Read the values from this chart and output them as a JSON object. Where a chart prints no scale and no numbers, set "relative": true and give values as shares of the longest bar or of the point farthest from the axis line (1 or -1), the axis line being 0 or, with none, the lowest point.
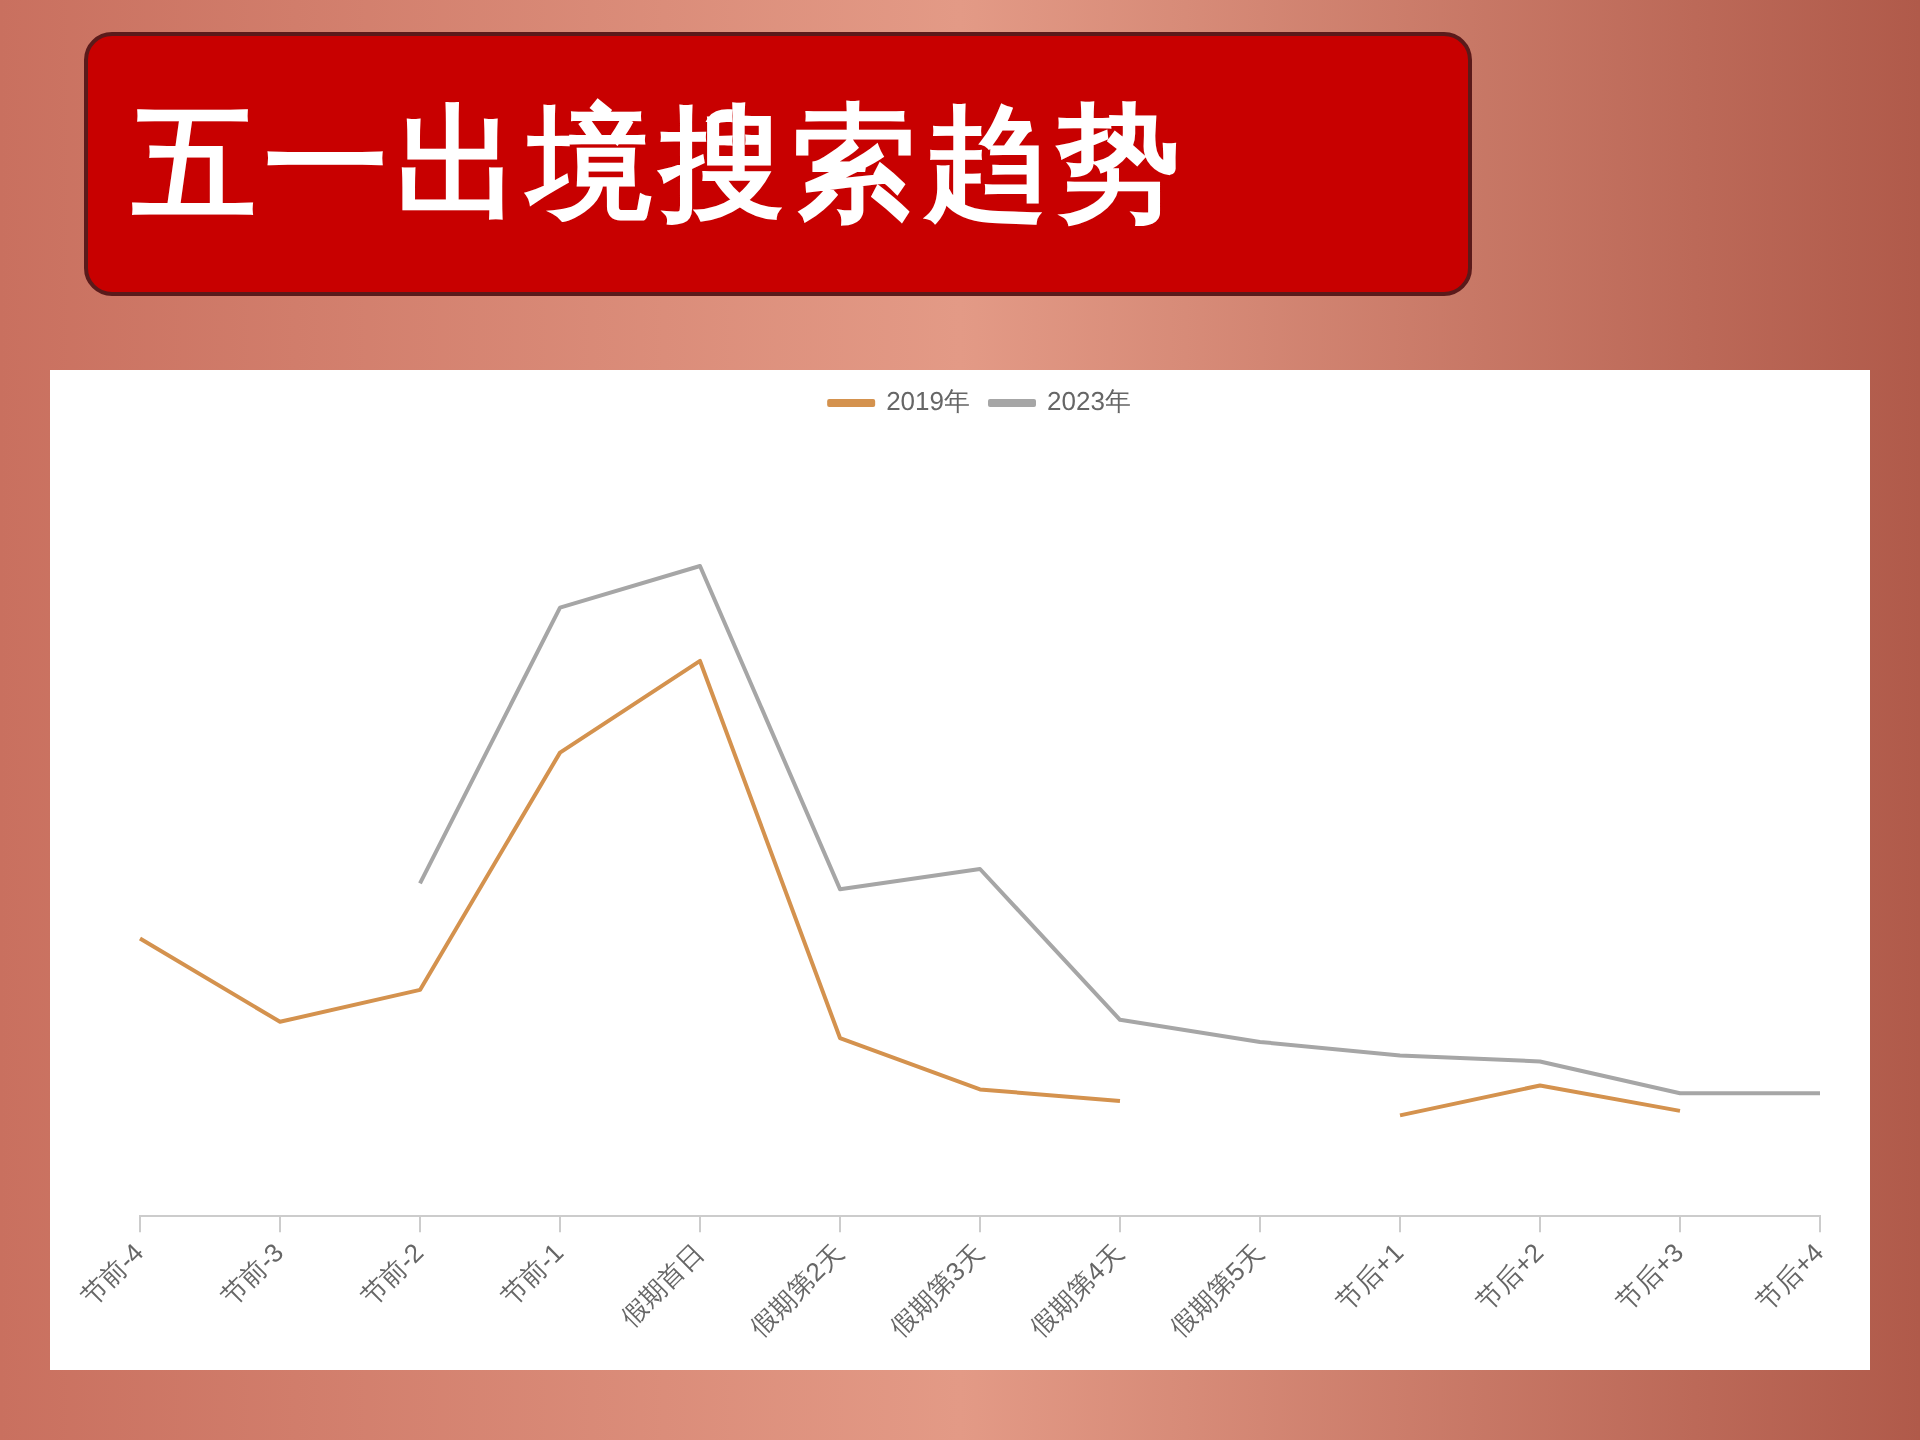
{
  "chart_data": {
    "type": "line",
    "title": "五一出境搜索趋势",
    "relative": true,
    "legend": "top",
    "categories": [
      "节前-4",
      "节前-3",
      "节前-2",
      "节前-1",
      "假期首日",
      "假期第2天",
      "假期第3天",
      "假期第4天",
      "假期第5天",
      "节后+1",
      "节后+2",
      "节后+3",
      "节后+4"
    ],
    "series": [
      {
        "name": "2019年",
        "color": "#d4924e",
        "values": [
          0.427,
          0.299,
          0.348,
          0.713,
          0.854,
          0.274,
          0.195,
          0.177,
          null,
          0.155,
          0.201,
          0.162,
          null
        ]
      },
      {
        "name": "2023年",
        "color": "#a6a6a6",
        "values": [
          null,
          null,
          0.512,
          0.936,
          1,
          0.503,
          0.534,
          0.302,
          0.268,
          0.247,
          0.238,
          0.189,
          0.189
        ]
      }
    ]
  }
}
